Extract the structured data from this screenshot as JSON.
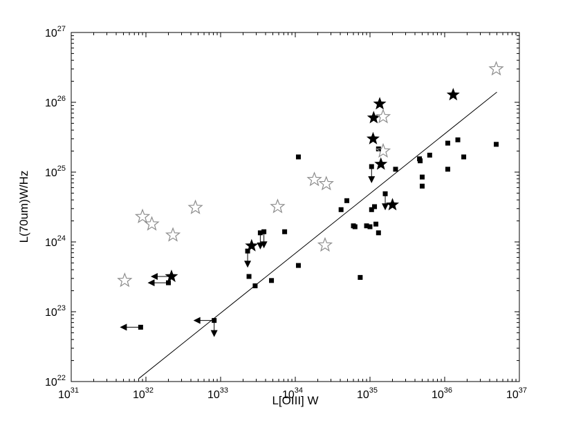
{
  "chart_data": {
    "type": "scatter",
    "title": "",
    "xlabel": "L[OIII] W",
    "ylabel": "L(70um)W/Hz",
    "xscale": "log",
    "yscale": "log",
    "xlim": [
      1e+31,
      1e+37
    ],
    "ylim": [
      1e+22,
      1e+27
    ],
    "grid": false,
    "legend": "none",
    "x_tick_labels": [
      {
        "base": "10",
        "exp": "31"
      },
      {
        "base": "10",
        "exp": "32"
      },
      {
        "base": "10",
        "exp": "33"
      },
      {
        "base": "10",
        "exp": "34"
      },
      {
        "base": "10",
        "exp": "35"
      },
      {
        "base": "10",
        "exp": "36"
      },
      {
        "base": "10",
        "exp": "37"
      }
    ],
    "y_tick_labels": [
      {
        "base": "10",
        "exp": "22"
      },
      {
        "base": "10",
        "exp": "23"
      },
      {
        "base": "10",
        "exp": "24"
      },
      {
        "base": "10",
        "exp": "25"
      },
      {
        "base": "10",
        "exp": "26"
      },
      {
        "base": "10",
        "exp": "27"
      }
    ],
    "colors": {
      "filled": "#000000",
      "open_star": "#8c8c8c",
      "fit_line": "#000000"
    },
    "fit_line": [
      [
        8e+31,
        1.1e+22
      ],
      [
        5e+36,
        1.4e+26
      ]
    ],
    "series": [
      {
        "marker": "filled-square",
        "points": [
          [
            8.5e+31,
            6e+22
          ],
          [
            2e+32,
            2.6e+23
          ],
          [
            8.2e+32,
            7.5e+22
          ],
          [
            2.4e+33,
            3.2e+23
          ],
          [
            2.9e+33,
            2.35e+23
          ],
          [
            4.8e+33,
            2.8e+23
          ],
          [
            2.3e+33,
            7.4e+23
          ],
          [
            3.4e+33,
            1.35e+24
          ],
          [
            3.8e+33,
            1.4e+24
          ],
          [
            7.2e+33,
            1.4e+24
          ],
          [
            1.1e+34,
            4.6e+23
          ],
          [
            1.1e+34,
            1.65e+25
          ],
          [
            4.1e+34,
            2.9e+24
          ],
          [
            4.9e+34,
            3.9e+24
          ],
          [
            6e+34,
            1.7e+24
          ],
          [
            6.3e+34,
            1.65e+24
          ],
          [
            7.4e+34,
            3.1e+23
          ],
          [
            9e+34,
            1.7e+24
          ],
          [
            1e+35,
            1.65e+24
          ],
          [
            1.05e+35,
            2.9e+24
          ],
          [
            1.15e+35,
            3.2e+24
          ],
          [
            1.2e+35,
            1.8e+24
          ],
          [
            1.3e+35,
            1.35e+24
          ],
          [
            1.05e+35,
            1.2e+25
          ],
          [
            1.3e+35,
            2.15e+25
          ],
          [
            1.6e+35,
            4.9e+24
          ],
          [
            2.2e+35,
            1.1e+25
          ],
          [
            4.6e+35,
            1.55e+25
          ],
          [
            4.7e+35,
            1.45e+25
          ],
          [
            6.3e+35,
            1.75e+25
          ],
          [
            5e+35,
            8.5e+24
          ],
          [
            5e+35,
            6.3e+24
          ],
          [
            1.1e+36,
            2.6e+25
          ],
          [
            1.1e+36,
            1.1e+25
          ],
          [
            1.5e+36,
            2.9e+25
          ],
          [
            1.8e+36,
            1.65e+25
          ],
          [
            4.9e+36,
            2.5e+25
          ]
        ]
      },
      {
        "marker": "filled-star",
        "points": [
          [
            2.2e+32,
            3.2e+23
          ],
          [
            2.6e+33,
            8.8e+23
          ],
          [
            1.1e+35,
            3e+25
          ],
          [
            1.12e+35,
            6e+25
          ],
          [
            1.35e+35,
            9.5e+25
          ],
          [
            1.4e+35,
            1.3e+25
          ],
          [
            2e+35,
            3.4e+24
          ],
          [
            1.3e+36,
            1.28e+26
          ]
        ]
      },
      {
        "marker": "open-star",
        "points": [
          [
            5.2e+31,
            2.8e+23
          ],
          [
            9e+31,
            2.3e+24
          ],
          [
            1.2e+32,
            1.8e+24
          ],
          [
            2.3e+32,
            1.25e+24
          ],
          [
            4.6e+32,
            3.1e+24
          ],
          [
            5.8e+33,
            3.2e+24
          ],
          [
            1.8e+34,
            7.8e+24
          ],
          [
            2.6e+34,
            6.8e+24
          ],
          [
            2.5e+34,
            9e+23
          ],
          [
            1.5e+35,
            6.2e+25
          ],
          [
            1.5e+35,
            2e+25
          ],
          [
            4.9e+36,
            3e+26
          ]
        ]
      }
    ],
    "upper_limits_y": [
      [
        2.3e+33,
        7.4e+23
      ],
      [
        3.4e+33,
        1.35e+24
      ],
      [
        3.8e+33,
        1.4e+24
      ],
      [
        8.2e+32,
        7.5e+22
      ],
      [
        1.05e+35,
        1.2e+25
      ],
      [
        1.6e+35,
        4.9e+24
      ]
    ],
    "upper_limits_x": [
      [
        8.5e+31,
        6e+22
      ],
      [
        2e+32,
        2.6e+23
      ],
      [
        2.2e+32,
        3.2e+23
      ],
      [
        8.2e+32,
        7.5e+22
      ]
    ]
  }
}
